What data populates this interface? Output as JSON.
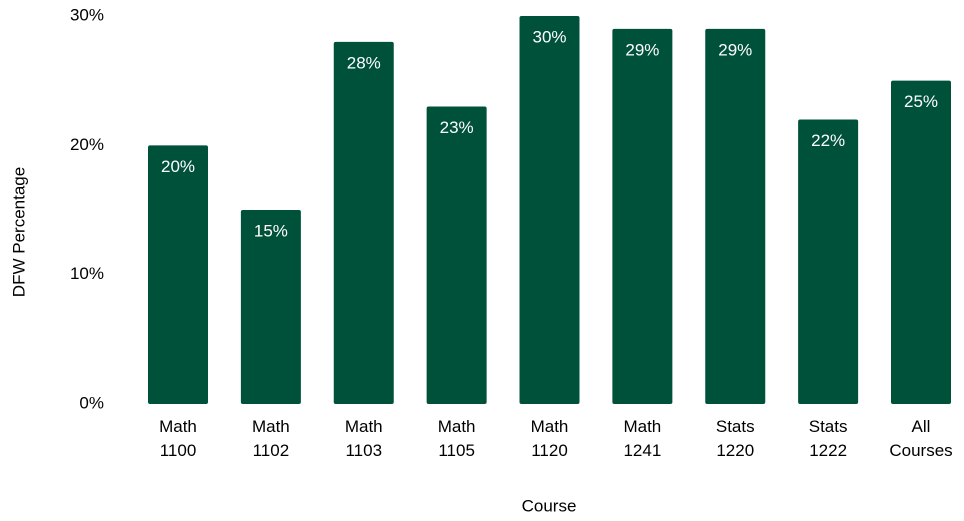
{
  "chart_data": {
    "type": "bar",
    "categories": [
      "Math 1100",
      "Math 1102",
      "Math 1103",
      "Math 1105",
      "Math 1120",
      "Math 1241",
      "Stats 1220",
      "Stats 1222",
      "All Courses"
    ],
    "values": [
      20,
      15,
      28,
      23,
      30,
      29,
      29,
      22,
      25
    ],
    "value_labels": [
      "20%",
      "15%",
      "28%",
      "23%",
      "30%",
      "29%",
      "29%",
      "22%",
      "25%"
    ],
    "color": "#00513a",
    "x_label": "Course",
    "y_label": "DFW Percentage",
    "ylim": [
      0,
      30
    ],
    "yticks": [
      {
        "value": 0,
        "label": "0%"
      },
      {
        "value": 10,
        "label": "10%"
      },
      {
        "value": 20,
        "label": "20%"
      },
      {
        "value": 30,
        "label": "30%"
      }
    ],
    "grid": false
  }
}
